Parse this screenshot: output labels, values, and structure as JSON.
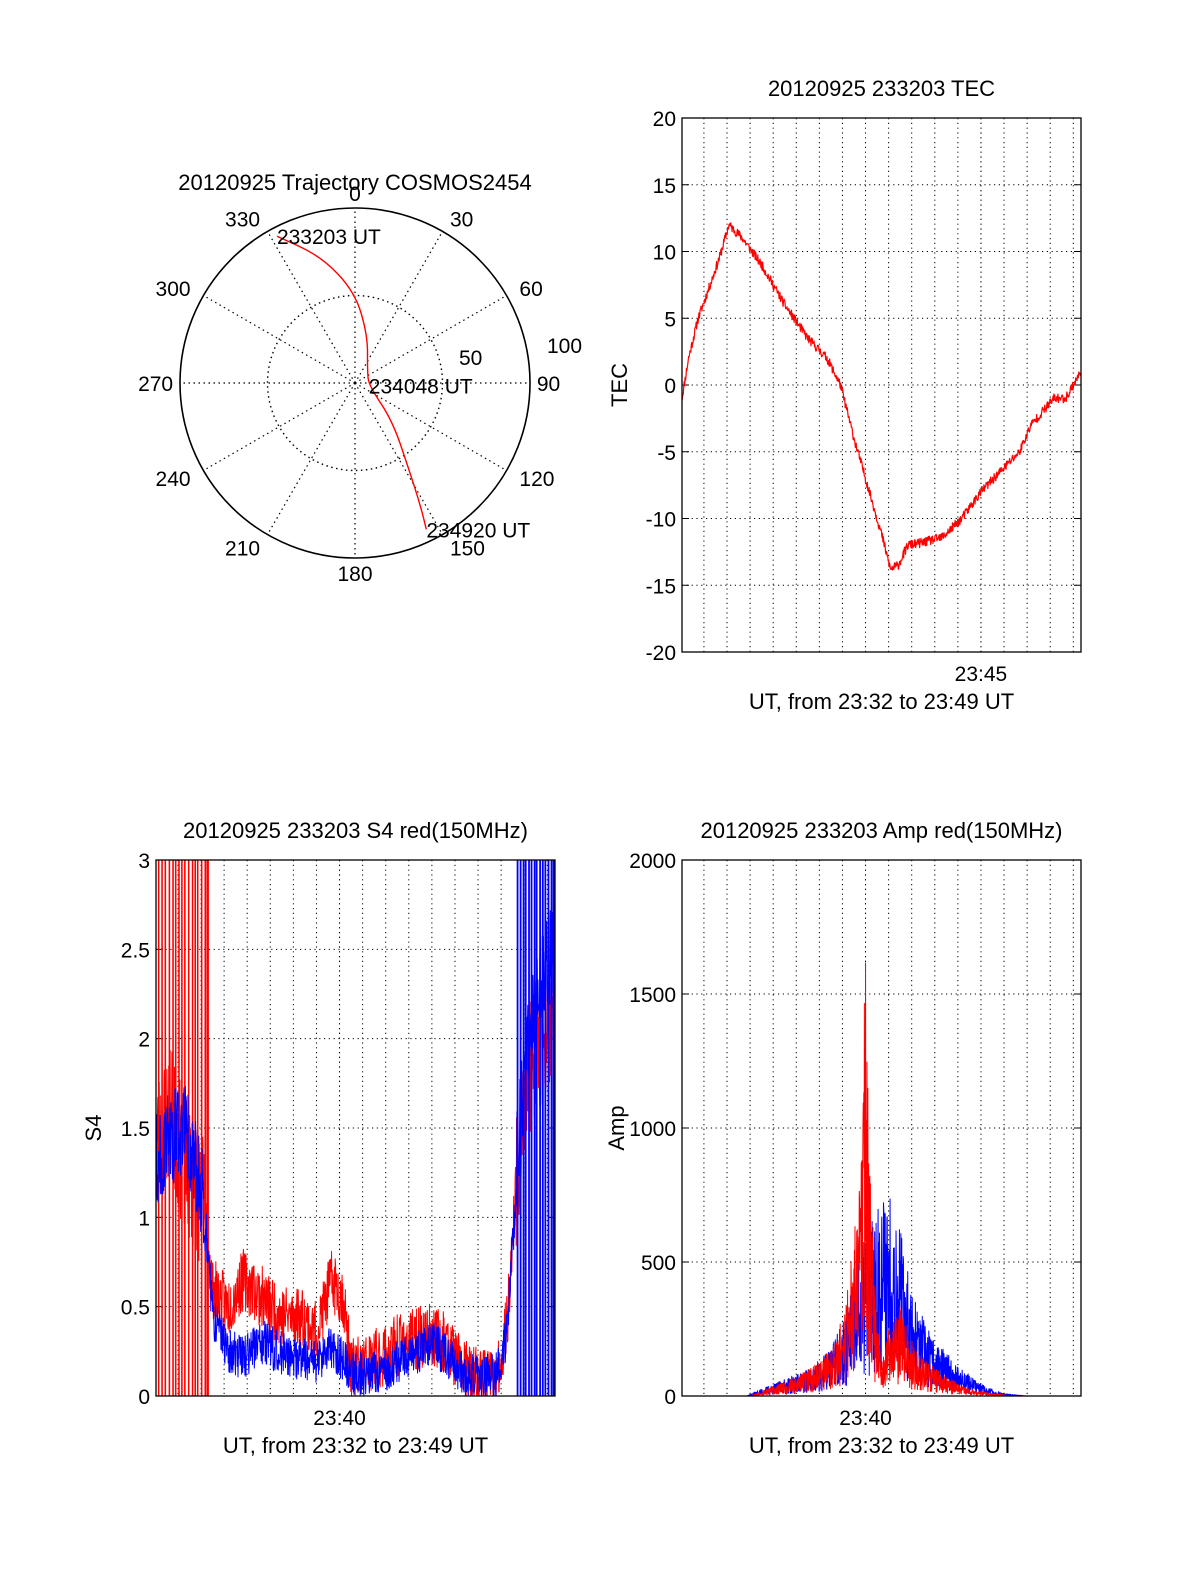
{
  "chart_data": [
    {
      "type": "polar",
      "title": "20120925 Trajectory COSMOS2454",
      "angle_ticks": [
        "0",
        "30",
        "60",
        "90",
        "120",
        "150",
        "180",
        "210",
        "240",
        "270",
        "300",
        "330"
      ],
      "radius_ticks": [
        "50",
        "100"
      ],
      "radius_range": [
        0,
        100
      ],
      "grid": true,
      "series": [
        {
          "color": "#ff0000",
          "points": [
            [
              332,
              95
            ],
            [
              345,
              75
            ],
            [
              0,
              52
            ],
            [
              15,
              28
            ],
            [
              45,
              10
            ],
            [
              100,
              8
            ],
            [
              135,
              30
            ],
            [
              148,
              58
            ],
            [
              152,
              80
            ],
            [
              154,
              93
            ]
          ]
        }
      ],
      "annotations": [
        {
          "text": "233203 UT",
          "az": 332,
          "r": 95
        },
        {
          "text": "234048 UT",
          "az": 100,
          "r": 8
        },
        {
          "text": "234920 UT",
          "az": 154,
          "r": 93
        }
      ]
    },
    {
      "type": "line",
      "title": "20120925 233203 TEC",
      "ylabel": "TEC",
      "xlabel": "UT, from 23:32 to 23:49 UT",
      "xlim": [
        "23:32:03",
        "23:49:20"
      ],
      "ylim": [
        -20,
        20
      ],
      "yticks": [
        "-20",
        "-15",
        "-10",
        "-5",
        "0",
        "5",
        "10",
        "15",
        "20"
      ],
      "xticks": [
        {
          "label": "23:45",
          "t": "23:45:00"
        }
      ],
      "grid": true,
      "series": [
        {
          "color": "#ff0000",
          "points": [
            [
              "23:32:03",
              -1
            ],
            [
              "23:32:20",
              2
            ],
            [
              "23:32:45",
              5
            ],
            [
              "23:33:10",
              7
            ],
            [
              "23:33:40",
              9.5
            ],
            [
              "23:34:05",
              12
            ],
            [
              "23:34:40",
              11
            ],
            [
              "23:35:30",
              9
            ],
            [
              "23:36:30",
              6
            ],
            [
              "23:37:30",
              3.5
            ],
            [
              "23:38:20",
              2
            ],
            [
              "23:38:55",
              0
            ],
            [
              "23:39:30",
              -4
            ],
            [
              "23:40:10",
              -8
            ],
            [
              "23:40:40",
              -11
            ],
            [
              "23:41:05",
              -13.8
            ],
            [
              "23:41:25",
              -13.5
            ],
            [
              "23:41:50",
              -12
            ],
            [
              "23:42:30",
              -11.8
            ],
            [
              "23:43:20",
              -11.4
            ],
            [
              "23:44:10",
              -10
            ],
            [
              "23:45:00",
              -8
            ],
            [
              "23:45:50",
              -6.5
            ],
            [
              "23:46:40",
              -5
            ],
            [
              "23:47:10",
              -3
            ],
            [
              "23:47:40",
              -2
            ],
            [
              "23:48:10",
              -1
            ],
            [
              "23:48:40",
              -1
            ],
            [
              "23:49:20",
              1
            ]
          ]
        }
      ]
    },
    {
      "type": "line",
      "title": "20120925 233203 S4 red(150MHz)",
      "ylabel": "S4",
      "xlabel": "UT, from 23:32 to 23:49 UT",
      "xlim": [
        "23:32:03",
        "23:49:20"
      ],
      "ylim": [
        0,
        3
      ],
      "yticks": [
        "0",
        "0.5",
        "1",
        "1.5",
        "2",
        "2.5",
        "3"
      ],
      "xticks": [
        {
          "label": "23:40",
          "t": "23:40:00"
        }
      ],
      "grid": true,
      "series": [
        {
          "color": "#ff0000",
          "points": [
            [
              "23:32:03",
              1.4
            ],
            [
              "23:32:40",
              1.6
            ],
            [
              "23:33:15",
              1.3
            ],
            [
              "23:34:05",
              1.1
            ],
            [
              "23:34:30",
              0.6
            ],
            [
              "23:35:10",
              0.5
            ],
            [
              "23:35:50",
              0.65
            ],
            [
              "23:36:40",
              0.55
            ],
            [
              "23:37:30",
              0.45
            ],
            [
              "23:38:20",
              0.45
            ],
            [
              "23:39:00",
              0.35
            ],
            [
              "23:39:40",
              0.65
            ],
            [
              "23:40:10",
              0.55
            ],
            [
              "23:40:30",
              0.15
            ],
            [
              "23:41:30",
              0.2
            ],
            [
              "23:42:30",
              0.28
            ],
            [
              "23:43:20",
              0.32
            ],
            [
              "23:44:00",
              0.35
            ],
            [
              "23:44:40",
              0.3
            ],
            [
              "23:45:20",
              0.15
            ],
            [
              "23:46:00",
              0.1
            ],
            [
              "23:46:50",
              0.1
            ],
            [
              "23:47:15",
              0.4
            ],
            [
              "23:47:40",
              1.2
            ],
            [
              "23:48:10",
              1.8
            ],
            [
              "23:48:50",
              2.0
            ],
            [
              "23:49:20",
              2.2
            ]
          ]
        },
        {
          "color": "#0000ff",
          "points": [
            [
              "23:32:03",
              1.3
            ],
            [
              "23:32:40",
              1.45
            ],
            [
              "23:33:15",
              1.5
            ],
            [
              "23:34:05",
              1.15
            ],
            [
              "23:34:30",
              0.45
            ],
            [
              "23:35:10",
              0.25
            ],
            [
              "23:35:50",
              0.22
            ],
            [
              "23:36:40",
              0.3
            ],
            [
              "23:37:30",
              0.24
            ],
            [
              "23:38:20",
              0.2
            ],
            [
              "23:39:00",
              0.18
            ],
            [
              "23:39:40",
              0.28
            ],
            [
              "23:40:10",
              0.2
            ],
            [
              "23:40:30",
              0.12
            ],
            [
              "23:41:30",
              0.12
            ],
            [
              "23:42:30",
              0.18
            ],
            [
              "23:43:20",
              0.25
            ],
            [
              "23:44:00",
              0.3
            ],
            [
              "23:44:40",
              0.22
            ],
            [
              "23:45:20",
              0.12
            ],
            [
              "23:46:00",
              0.1
            ],
            [
              "23:46:50",
              0.12
            ],
            [
              "23:47:15",
              0.35
            ],
            [
              "23:47:40",
              1.3
            ],
            [
              "23:48:10",
              2.0
            ],
            [
              "23:48:50",
              2.4
            ],
            [
              "23:49:20",
              2.5
            ]
          ]
        }
      ]
    },
    {
      "type": "line",
      "title": "20120925 233203 Amp red(150MHz)",
      "ylabel": "Amp",
      "xlabel": "UT, from 23:32 to 23:49 UT",
      "xlim": [
        "23:32:03",
        "23:49:20"
      ],
      "ylim": [
        0,
        2000
      ],
      "yticks": [
        "0",
        "500",
        "1000",
        "1500",
        "2000"
      ],
      "xticks": [
        {
          "label": "23:40",
          "t": "23:40:00"
        }
      ],
      "grid": true,
      "series": [
        {
          "color": "#0000ff",
          "points": [
            [
              "23:32:03",
              0
            ],
            [
              "23:34:50",
              0
            ],
            [
              "23:35:30",
              15
            ],
            [
              "23:36:30",
              35
            ],
            [
              "23:37:30",
              55
            ],
            [
              "23:38:20",
              90
            ],
            [
              "23:39:00",
              150
            ],
            [
              "23:39:30",
              240
            ],
            [
              "23:39:50",
              310
            ],
            [
              "23:40:15",
              380
            ],
            [
              "23:40:40",
              420
            ],
            [
              "23:41:00",
              450
            ],
            [
              "23:41:30",
              350
            ],
            [
              "23:42:00",
              220
            ],
            [
              "23:42:40",
              140
            ],
            [
              "23:43:30",
              90
            ],
            [
              "23:44:20",
              50
            ],
            [
              "23:45:10",
              20
            ],
            [
              "23:46:00",
              5
            ],
            [
              "23:47:00",
              0
            ],
            [
              "23:49:20",
              0
            ]
          ]
        },
        {
          "color": "#ff0000",
          "points": [
            [
              "23:32:03",
              0
            ],
            [
              "23:35:00",
              0
            ],
            [
              "23:36:00",
              20
            ],
            [
              "23:37:00",
              40
            ],
            [
              "23:38:00",
              70
            ],
            [
              "23:38:40",
              110
            ],
            [
              "23:39:10",
              200
            ],
            [
              "23:39:30",
              350
            ],
            [
              "23:39:50",
              500
            ],
            [
              "23:40:00",
              950
            ],
            [
              "23:40:10",
              550
            ],
            [
              "23:40:25",
              250
            ],
            [
              "23:40:40",
              60
            ],
            [
              "23:41:00",
              140
            ],
            [
              "23:41:30",
              190
            ],
            [
              "23:42:00",
              120
            ],
            [
              "23:42:40",
              70
            ],
            [
              "23:43:30",
              40
            ],
            [
              "23:44:30",
              15
            ],
            [
              "23:45:30",
              5
            ],
            [
              "23:46:30",
              0
            ],
            [
              "23:49:20",
              0
            ]
          ]
        }
      ]
    }
  ]
}
